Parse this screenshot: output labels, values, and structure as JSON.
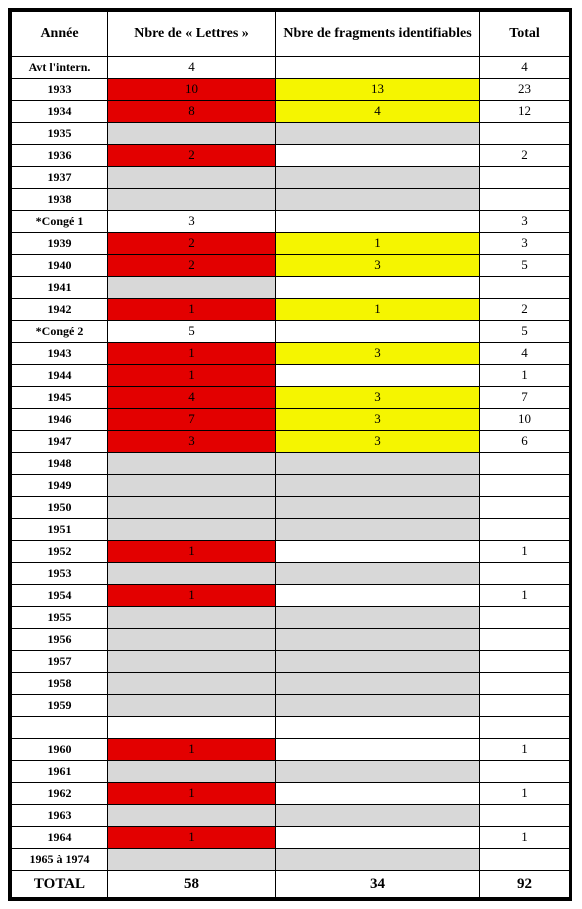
{
  "headers": {
    "col1": "Année",
    "col2": "Nbre de « Lettres »",
    "col3": "Nbre de fragments identifiables",
    "col4": "Total"
  },
  "rows": [
    {
      "year": "Avt l'intern.",
      "lettres": "4",
      "frags": "",
      "total": "4",
      "cls_let": "",
      "cls_frag": "",
      "cls_year": "small"
    },
    {
      "year": "1933",
      "lettres": "10",
      "frags": "13",
      "total": "23",
      "cls_let": "bg-red",
      "cls_frag": "bg-yellow"
    },
    {
      "year": "1934",
      "lettres": "8",
      "frags": "4",
      "total": "12",
      "cls_let": "bg-red",
      "cls_frag": "bg-yellow"
    },
    {
      "year": "1935",
      "lettres": "",
      "frags": "",
      "total": "",
      "cls_let": "bg-grey",
      "cls_frag": "bg-grey"
    },
    {
      "year": "1936",
      "lettres": "2",
      "frags": "",
      "total": "2",
      "cls_let": "bg-red",
      "cls_frag": ""
    },
    {
      "year": "1937",
      "lettres": "",
      "frags": "",
      "total": "",
      "cls_let": "bg-grey",
      "cls_frag": "bg-grey"
    },
    {
      "year": "1938",
      "lettres": "",
      "frags": "",
      "total": "",
      "cls_let": "bg-grey",
      "cls_frag": "bg-grey"
    },
    {
      "year": "*Congé 1",
      "lettres": "3",
      "frags": "",
      "total": "3",
      "cls_let": "",
      "cls_frag": ""
    },
    {
      "year": "1939",
      "lettres": "2",
      "frags": "1",
      "total": "3",
      "cls_let": "bg-red",
      "cls_frag": "bg-yellow"
    },
    {
      "year": "1940",
      "lettres": "2",
      "frags": "3",
      "total": "5",
      "cls_let": "bg-red",
      "cls_frag": "bg-yellow"
    },
    {
      "year": "1941",
      "lettres": "",
      "frags": "",
      "total": "",
      "cls_let": "bg-grey",
      "cls_frag": ""
    },
    {
      "year": "1942",
      "lettres": "1",
      "frags": "1",
      "total": "2",
      "cls_let": "bg-red",
      "cls_frag": "bg-yellow"
    },
    {
      "year": "*Congé 2",
      "lettres": "5",
      "frags": "",
      "total": "5",
      "cls_let": "",
      "cls_frag": ""
    },
    {
      "year": "1943",
      "lettres": "1",
      "frags": "3",
      "total": "4",
      "cls_let": "bg-red",
      "cls_frag": "bg-yellow"
    },
    {
      "year": "1944",
      "lettres": "1",
      "frags": "",
      "total": "1",
      "cls_let": "bg-red",
      "cls_frag": ""
    },
    {
      "year": "1945",
      "lettres": "4",
      "frags": "3",
      "total": "7",
      "cls_let": "bg-red",
      "cls_frag": "bg-yellow"
    },
    {
      "year": "1946",
      "lettres": "7",
      "frags": "3",
      "total": "10",
      "cls_let": "bg-red",
      "cls_frag": "bg-yellow"
    },
    {
      "year": "1947",
      "lettres": "3",
      "frags": "3",
      "total": "6",
      "cls_let": "bg-red",
      "cls_frag": "bg-yellow"
    },
    {
      "year": "1948",
      "lettres": "",
      "frags": "",
      "total": "",
      "cls_let": "bg-grey",
      "cls_frag": "bg-grey"
    },
    {
      "year": "1949",
      "lettres": "",
      "frags": "",
      "total": "",
      "cls_let": "bg-grey",
      "cls_frag": "bg-grey"
    },
    {
      "year": "1950",
      "lettres": "",
      "frags": "",
      "total": "",
      "cls_let": "bg-grey",
      "cls_frag": "bg-grey"
    },
    {
      "year": "1951",
      "lettres": "",
      "frags": "",
      "total": "",
      "cls_let": "bg-grey",
      "cls_frag": "bg-grey"
    },
    {
      "year": "1952",
      "lettres": "1",
      "frags": "",
      "total": "1",
      "cls_let": "bg-red",
      "cls_frag": ""
    },
    {
      "year": "1953",
      "lettres": "",
      "frags": "",
      "total": "",
      "cls_let": "bg-grey",
      "cls_frag": "bg-grey"
    },
    {
      "year": "1954",
      "lettres": "1",
      "frags": "",
      "total": "1",
      "cls_let": "bg-red",
      "cls_frag": ""
    },
    {
      "year": "1955",
      "lettres": "",
      "frags": "",
      "total": "",
      "cls_let": "bg-grey",
      "cls_frag": "bg-grey"
    },
    {
      "year": "1956",
      "lettres": "",
      "frags": "",
      "total": "",
      "cls_let": "bg-grey",
      "cls_frag": "bg-grey"
    },
    {
      "year": "1957",
      "lettres": "",
      "frags": "",
      "total": "",
      "cls_let": "bg-grey",
      "cls_frag": "bg-grey"
    },
    {
      "year": "1958",
      "lettres": "",
      "frags": "",
      "total": "",
      "cls_let": "bg-grey",
      "cls_frag": "bg-grey"
    },
    {
      "year": "1959",
      "lettres": "",
      "frags": "",
      "total": "",
      "cls_let": "bg-grey",
      "cls_frag": "bg-grey"
    },
    {
      "year": "",
      "lettres": "",
      "frags": "",
      "total": "",
      "cls_let": "",
      "cls_frag": ""
    },
    {
      "year": "1960",
      "lettres": "1",
      "frags": "",
      "total": "1",
      "cls_let": "bg-red",
      "cls_frag": ""
    },
    {
      "year": "1961",
      "lettres": "",
      "frags": "",
      "total": "",
      "cls_let": "bg-grey",
      "cls_frag": "bg-grey"
    },
    {
      "year": "1962",
      "lettres": "1",
      "frags": "",
      "total": "1",
      "cls_let": "bg-red",
      "cls_frag": ""
    },
    {
      "year": "1963",
      "lettres": "",
      "frags": "",
      "total": "",
      "cls_let": "bg-grey",
      "cls_frag": "bg-grey"
    },
    {
      "year": "1964",
      "lettres": "1",
      "frags": "",
      "total": "1",
      "cls_let": "bg-red",
      "cls_frag": ""
    },
    {
      "year": "1965 à 1974",
      "lettres": "",
      "frags": "",
      "total": "",
      "cls_let": "bg-grey",
      "cls_frag": "bg-grey",
      "cls_year": "small"
    }
  ],
  "total_row": {
    "label": "TOTAL",
    "lettres": "58",
    "frags": "34",
    "total": "92"
  }
}
